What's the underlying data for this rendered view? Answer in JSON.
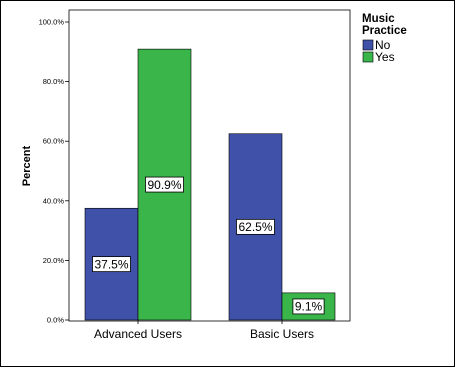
{
  "chart_data": {
    "type": "bar",
    "categories": [
      "Advanced Users",
      "Basic Users"
    ],
    "series": [
      {
        "name": "No",
        "values": [
          37.5,
          62.5
        ],
        "color": "#3f51a8"
      },
      {
        "name": "Yes",
        "values": [
          90.9,
          9.1
        ],
        "color": "#39b54a"
      }
    ],
    "data_labels": [
      [
        "37.5%",
        "62.5%"
      ],
      [
        "90.9%",
        "9.1%"
      ]
    ],
    "ylabel": "Percent",
    "ylim": [
      0,
      100
    ],
    "yticks": [
      0,
      20,
      40,
      60,
      80,
      100
    ],
    "ytick_labels": [
      "0.0%",
      "20.0%",
      "40.0%",
      "60.0%",
      "80.0%",
      "100.0%"
    ],
    "legend": {
      "title_line1": "Music",
      "title_line2": "Practice",
      "placement": "top-right"
    },
    "grid": false
  }
}
